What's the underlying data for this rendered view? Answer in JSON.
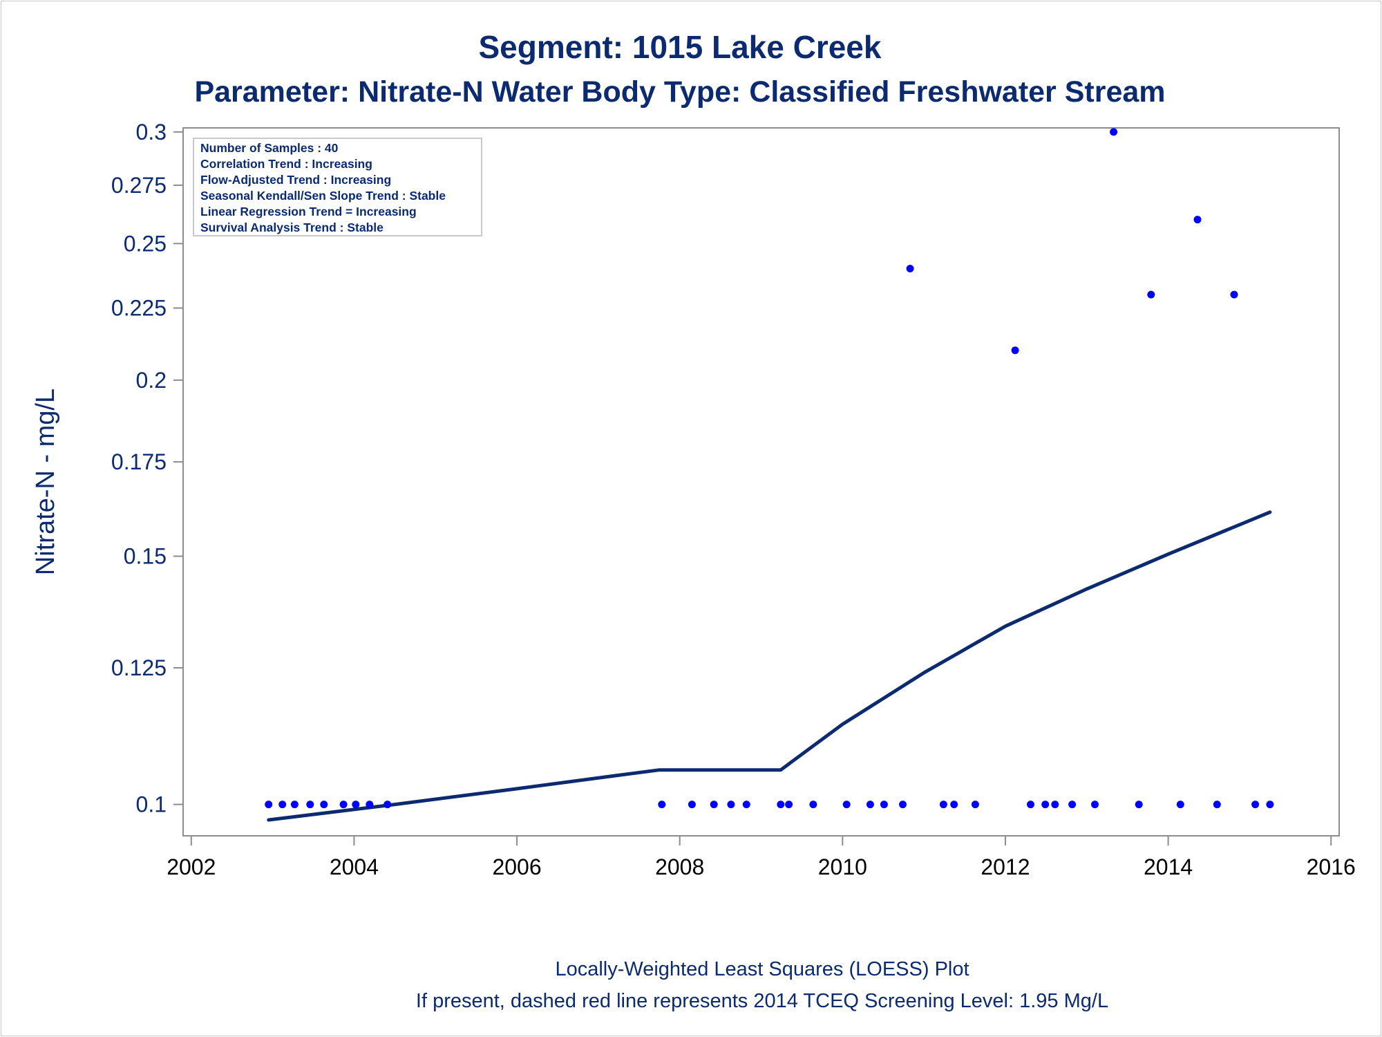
{
  "header": {
    "title": "Segment: 1015  Lake Creek",
    "subtitle": "Parameter: Nitrate-N   Water Body Type: Classified Freshwater Stream"
  },
  "stats_box": {
    "lines": [
      "Number of Samples : 40",
      "Correlation Trend : Increasing",
      "Flow-Adjusted Trend : Increasing",
      "Seasonal Kendall/Sen Slope Trend : Stable",
      "Linear Regression Trend = Increasing",
      "Survival Analysis Trend : Stable"
    ]
  },
  "footer": {
    "line1": "Locally-Weighted Least Squares (LOESS) Plot",
    "line2": "If present, dashed red line represents 2014 TCEQ Screening Level: 1.95 Mg/L"
  },
  "colors": {
    "text": "#0b2a6f",
    "points": "#0000ff",
    "loess_line": "#0b2a6f",
    "axis": "#8c8c8c"
  },
  "chart_data": {
    "type": "scatter",
    "ylabel": "Nitrate-N - mg/L",
    "xlabel": "",
    "y_scale": "log",
    "xlim": [
      2001.9,
      2016.1
    ],
    "ylim": [
      0.095,
      0.302
    ],
    "y_ticks": [
      0.1,
      0.125,
      0.15,
      0.175,
      0.2,
      0.225,
      0.25,
      0.275,
      0.3
    ],
    "y_tick_labels": [
      "0.1",
      "0.125",
      "0.15",
      "0.175",
      "0.2",
      "0.225",
      "0.25",
      "0.275",
      "0.3"
    ],
    "x_ticks": [
      2002,
      2004,
      2006,
      2008,
      2010,
      2012,
      2014,
      2016
    ],
    "x_tick_labels": [
      "2002",
      "2004",
      "2006",
      "2008",
      "2010",
      "2012",
      "2014",
      "2016"
    ],
    "grid": false,
    "series": [
      {
        "type": "scatter",
        "points": [
          {
            "x": 2002.95,
            "y": 0.1
          },
          {
            "x": 2003.12,
            "y": 0.1
          },
          {
            "x": 2003.27,
            "y": 0.1
          },
          {
            "x": 2003.46,
            "y": 0.1
          },
          {
            "x": 2003.63,
            "y": 0.1
          },
          {
            "x": 2003.87,
            "y": 0.1
          },
          {
            "x": 2004.02,
            "y": 0.1
          },
          {
            "x": 2004.19,
            "y": 0.1
          },
          {
            "x": 2004.41,
            "y": 0.1
          },
          {
            "x": 2007.78,
            "y": 0.1
          },
          {
            "x": 2008.15,
            "y": 0.1
          },
          {
            "x": 2008.42,
            "y": 0.1
          },
          {
            "x": 2008.63,
            "y": 0.1
          },
          {
            "x": 2008.82,
            "y": 0.1
          },
          {
            "x": 2009.24,
            "y": 0.1
          },
          {
            "x": 2009.34,
            "y": 0.1
          },
          {
            "x": 2009.64,
            "y": 0.1
          },
          {
            "x": 2010.05,
            "y": 0.1
          },
          {
            "x": 2010.34,
            "y": 0.1
          },
          {
            "x": 2010.51,
            "y": 0.1
          },
          {
            "x": 2010.74,
            "y": 0.1
          },
          {
            "x": 2010.83,
            "y": 0.24
          },
          {
            "x": 2011.24,
            "y": 0.1
          },
          {
            "x": 2011.37,
            "y": 0.1
          },
          {
            "x": 2011.63,
            "y": 0.1
          },
          {
            "x": 2012.12,
            "y": 0.21
          },
          {
            "x": 2012.31,
            "y": 0.1
          },
          {
            "x": 2012.49,
            "y": 0.1
          },
          {
            "x": 2012.61,
            "y": 0.1
          },
          {
            "x": 2012.82,
            "y": 0.1
          },
          {
            "x": 2013.1,
            "y": 0.1
          },
          {
            "x": 2013.33,
            "y": 0.3
          },
          {
            "x": 2013.64,
            "y": 0.1
          },
          {
            "x": 2013.79,
            "y": 0.23
          },
          {
            "x": 2014.15,
            "y": 0.1
          },
          {
            "x": 2014.36,
            "y": 0.26
          },
          {
            "x": 2014.6,
            "y": 0.1
          },
          {
            "x": 2014.81,
            "y": 0.23
          },
          {
            "x": 2015.07,
            "y": 0.1
          },
          {
            "x": 2015.25,
            "y": 0.1
          }
        ]
      },
      {
        "type": "line",
        "points": [
          {
            "x": 2002.95,
            "y": 0.0975
          },
          {
            "x": 2004.5,
            "y": 0.1
          },
          {
            "x": 2006.0,
            "y": 0.1026
          },
          {
            "x": 2007.2,
            "y": 0.1048
          },
          {
            "x": 2007.75,
            "y": 0.1058
          },
          {
            "x": 2009.24,
            "y": 0.1058
          },
          {
            "x": 2010.0,
            "y": 0.114
          },
          {
            "x": 2011.0,
            "y": 0.124
          },
          {
            "x": 2012.0,
            "y": 0.1338
          },
          {
            "x": 2013.0,
            "y": 0.1422
          },
          {
            "x": 2014.0,
            "y": 0.1505
          },
          {
            "x": 2015.25,
            "y": 0.1612
          }
        ]
      }
    ]
  }
}
